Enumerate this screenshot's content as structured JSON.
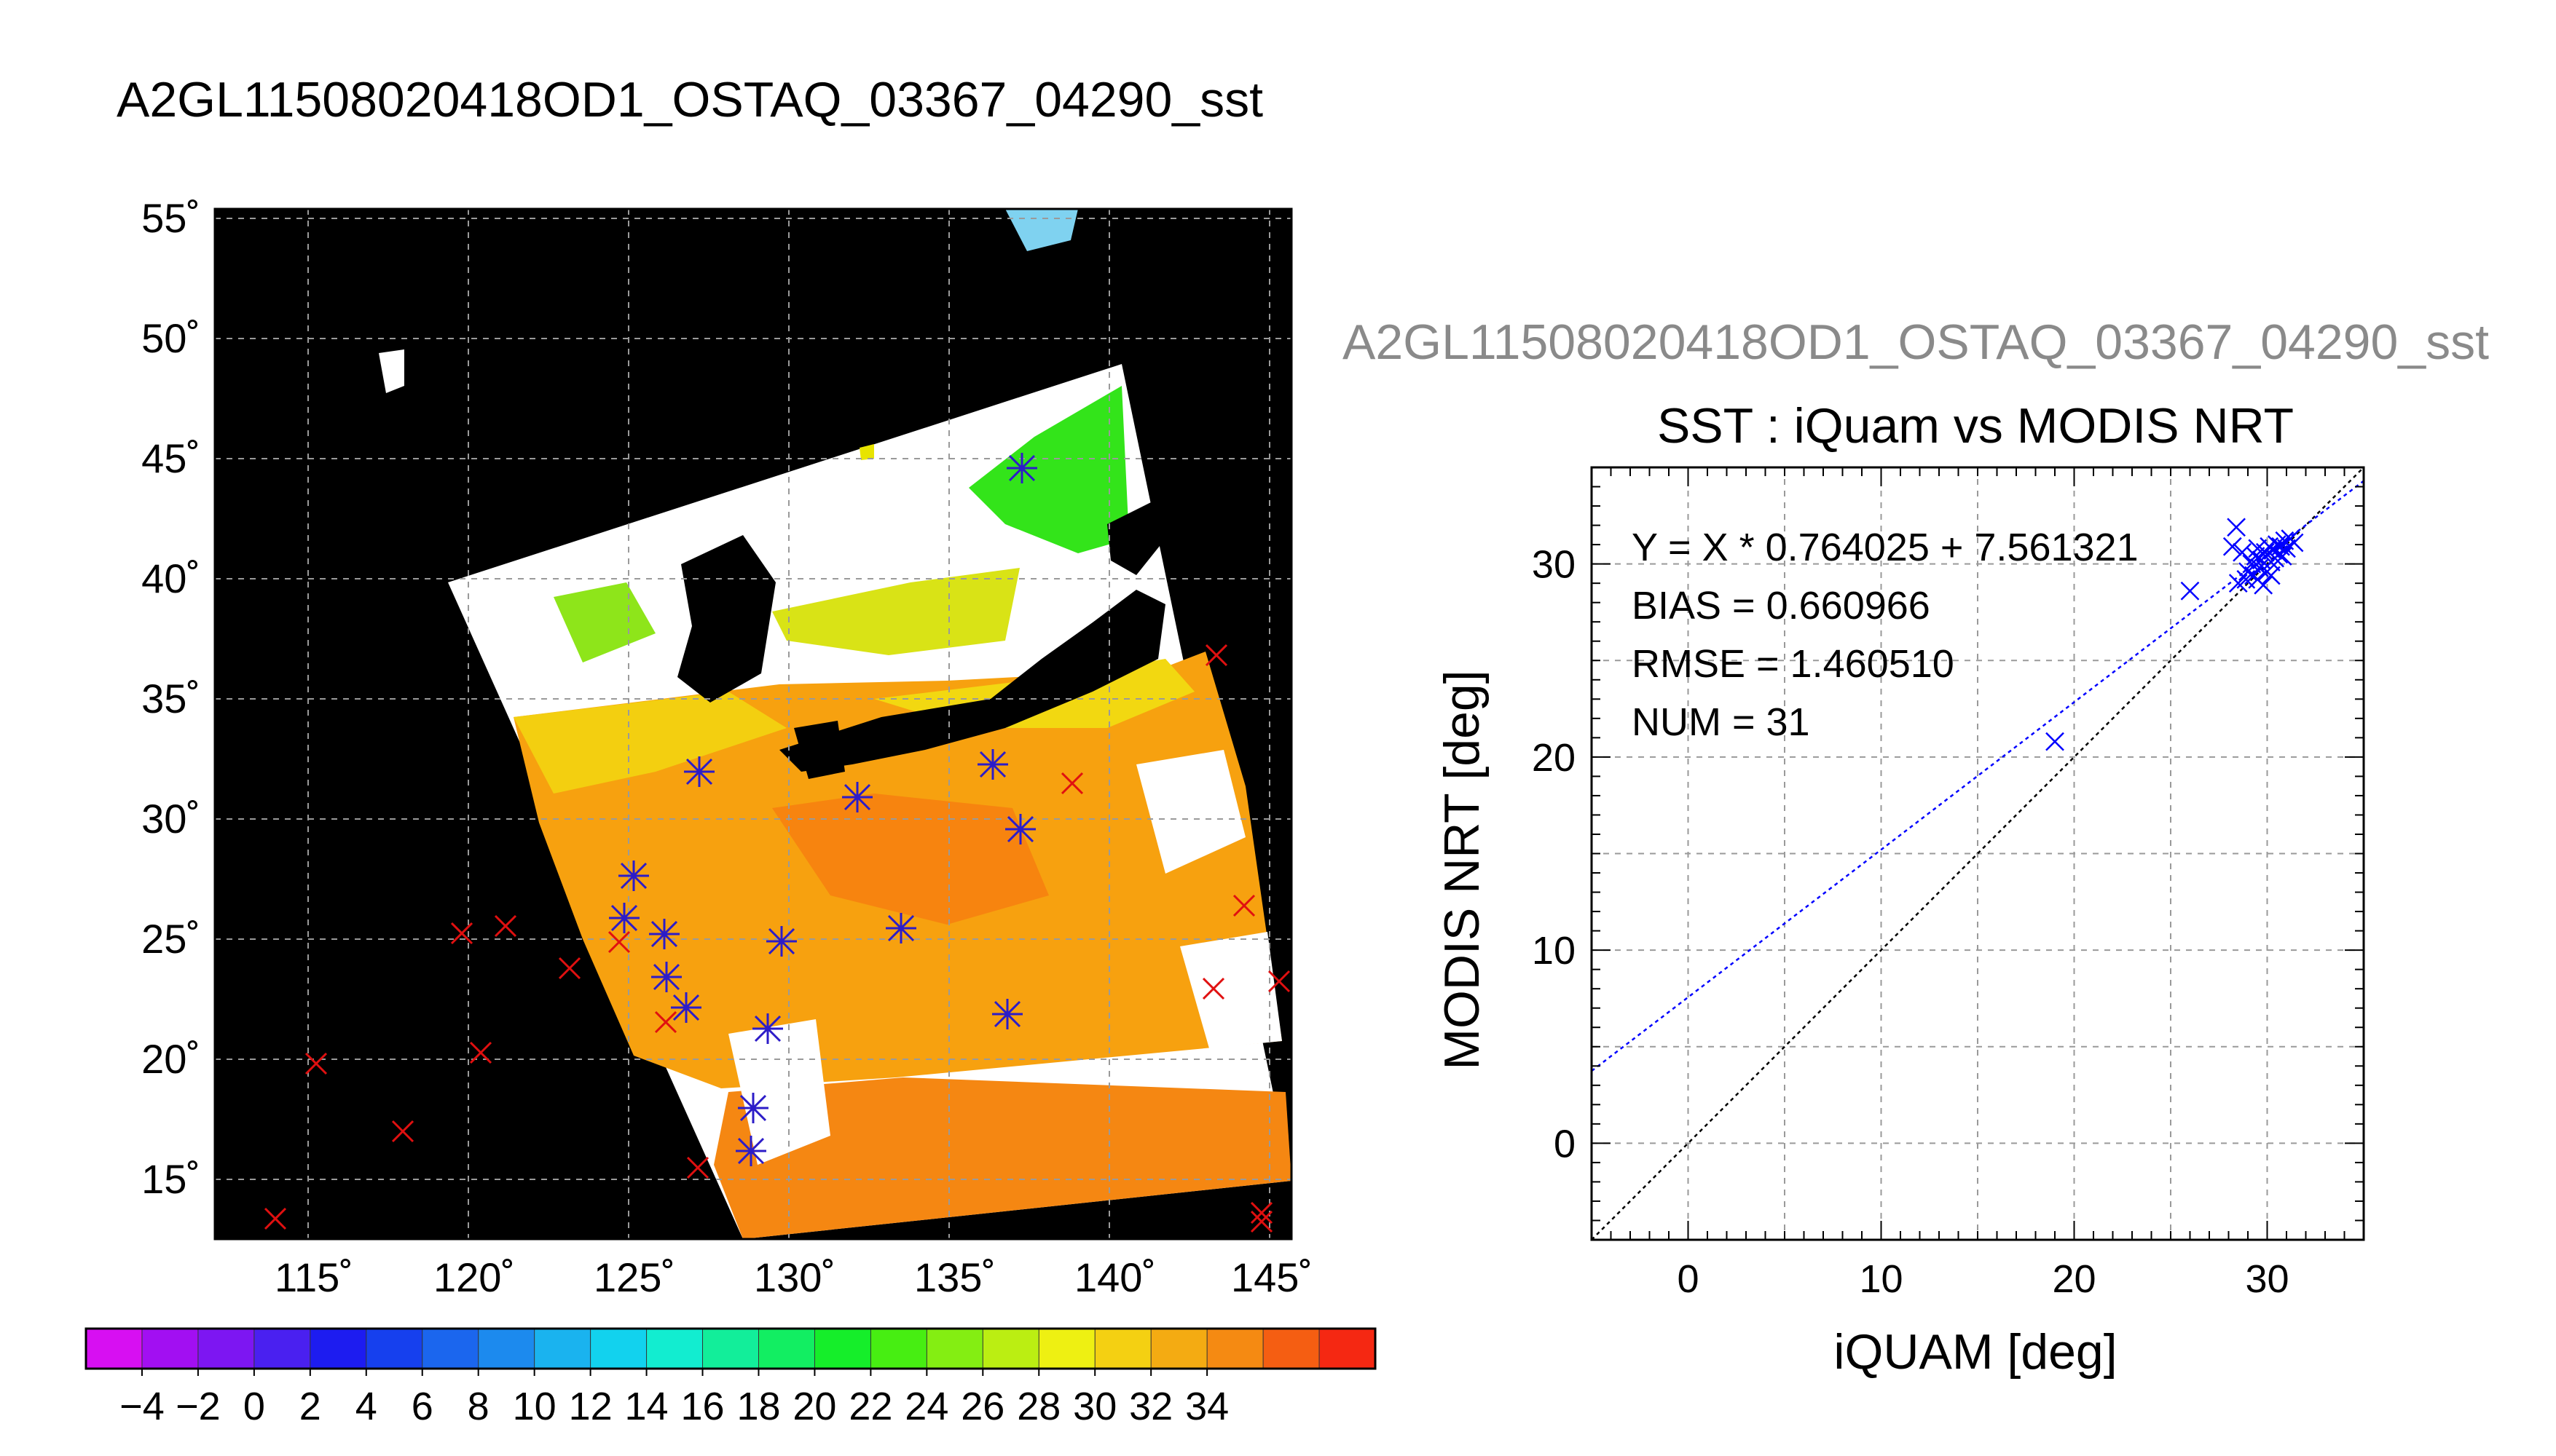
{
  "map_title": "A2GL11508020418OD1_OSTAQ_03367_04290_sst",
  "map": {
    "lat_ticks": [
      "55˚",
      "50˚",
      "45˚",
      "40˚",
      "35˚",
      "30˚",
      "25˚",
      "20˚",
      "15˚"
    ],
    "lon_ticks": [
      "115˚",
      "120˚",
      "125˚",
      "130˚",
      "135˚",
      "140˚",
      "145˚"
    ],
    "colorbar_labels": [
      "−4",
      "−2",
      "0",
      "2",
      "4",
      "6",
      "8",
      "10",
      "12",
      "14",
      "16",
      "18",
      "20",
      "22",
      "24",
      "26",
      "28",
      "30",
      "32",
      "34"
    ],
    "colorbar_colors": [
      "#d70ff2",
      "#a20ff2",
      "#7d16f2",
      "#4a20f0",
      "#1d1cf0",
      "#1640ee",
      "#1b66ee",
      "#1c8aee",
      "#1ab3ef",
      "#12d2ee",
      "#12edd0",
      "#12ee9a",
      "#12ee62",
      "#15ee2a",
      "#47ee12",
      "#84ee12",
      "#bbee12",
      "#eef012",
      "#f4d012",
      "#f4ab12",
      "#f58a12",
      "#f55e12",
      "#f52812"
    ]
  },
  "chart_data": {
    "type": "scatter",
    "suptitle": "A2GL11508020418OD1_OSTAQ_03367_04290_sst",
    "title": "SST : iQuam vs MODIS NRT",
    "xlabel": "iQUAM [deg]",
    "ylabel": "MODIS NRT [deg]",
    "xlim": [
      -5,
      35
    ],
    "ylim": [
      -5,
      35
    ],
    "xticks": [
      "0",
      "10",
      "20",
      "30"
    ],
    "yticks": [
      "0",
      "10",
      "20",
      "30"
    ],
    "grid": true,
    "stats": [
      "Y = X * 0.764025 + 7.561321",
      "BIAS = 0.660966",
      "RMSE = 1.460510",
      "NUM = 31"
    ],
    "fit": {
      "slope": 0.764025,
      "intercept": 7.561321,
      "color": "#0000ff"
    },
    "identity_line_color": "#000000",
    "marker_color": "#0000ff",
    "points": [
      [
        19.0,
        20.8
      ],
      [
        26.0,
        28.6
      ],
      [
        28.2,
        30.9
      ],
      [
        28.4,
        31.9
      ],
      [
        28.5,
        29.0
      ],
      [
        28.7,
        30.6
      ],
      [
        28.9,
        29.2
      ],
      [
        29.0,
        29.6
      ],
      [
        29.2,
        30.0
      ],
      [
        29.3,
        29.4
      ],
      [
        29.4,
        30.4
      ],
      [
        29.5,
        29.2
      ],
      [
        29.6,
        29.8
      ],
      [
        29.7,
        30.2
      ],
      [
        29.8,
        28.9
      ],
      [
        29.9,
        30.6
      ],
      [
        30.0,
        29.6
      ],
      [
        30.1,
        30.9
      ],
      [
        30.2,
        30.1
      ],
      [
        30.3,
        30.7
      ],
      [
        30.4,
        30.3
      ],
      [
        30.5,
        31.0
      ],
      [
        30.6,
        30.5
      ],
      [
        30.7,
        30.9
      ],
      [
        30.8,
        30.4
      ],
      [
        30.9,
        31.2
      ],
      [
        31.0,
        30.8
      ],
      [
        31.2,
        31.3
      ],
      [
        31.4,
        31.1
      ],
      [
        29.5,
        30.8
      ],
      [
        30.2,
        29.4
      ]
    ]
  }
}
